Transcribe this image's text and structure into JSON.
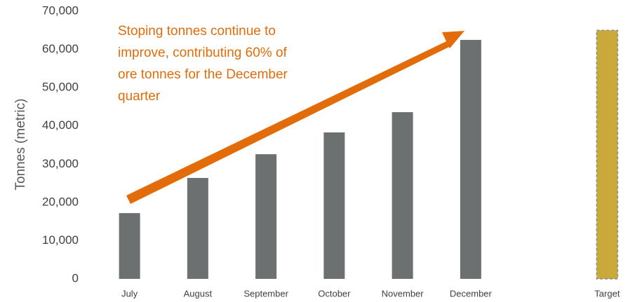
{
  "chart_data": {
    "type": "bar",
    "categories": [
      "July",
      "August",
      "September",
      "October",
      "November",
      "December",
      null,
      "Target"
    ],
    "values": [
      17200,
      26400,
      32600,
      38300,
      43600,
      62500,
      null,
      65000
    ],
    "colors": [
      "#6d7071",
      "#6d7071",
      "#6d7071",
      "#6d7071",
      "#6d7071",
      "#6d7071",
      null,
      "#c9a93a"
    ],
    "border_colors": [
      null,
      null,
      null,
      null,
      null,
      null,
      null,
      "#8c8c8c"
    ],
    "ylabel": "Tonnes (metric)",
    "ylim": [
      0,
      70000
    ],
    "yticks": [
      0,
      {
        "value": 10000,
        "label": "10,000"
      },
      {
        "value": 20000,
        "label": "20,000"
      },
      {
        "value": 30000,
        "label": "30,000"
      },
      {
        "value": 40000,
        "label": "40,000"
      },
      {
        "value": 50000,
        "label": "50,000"
      },
      {
        "value": 60000,
        "label": "60,000"
      },
      {
        "value": 70000,
        "label": "70,000"
      }
    ],
    "grid": false,
    "annotation": [
      "Stoping tonnes continue to",
      "improve, contributing 60% of",
      "ore tonnes for the December",
      "quarter"
    ]
  }
}
